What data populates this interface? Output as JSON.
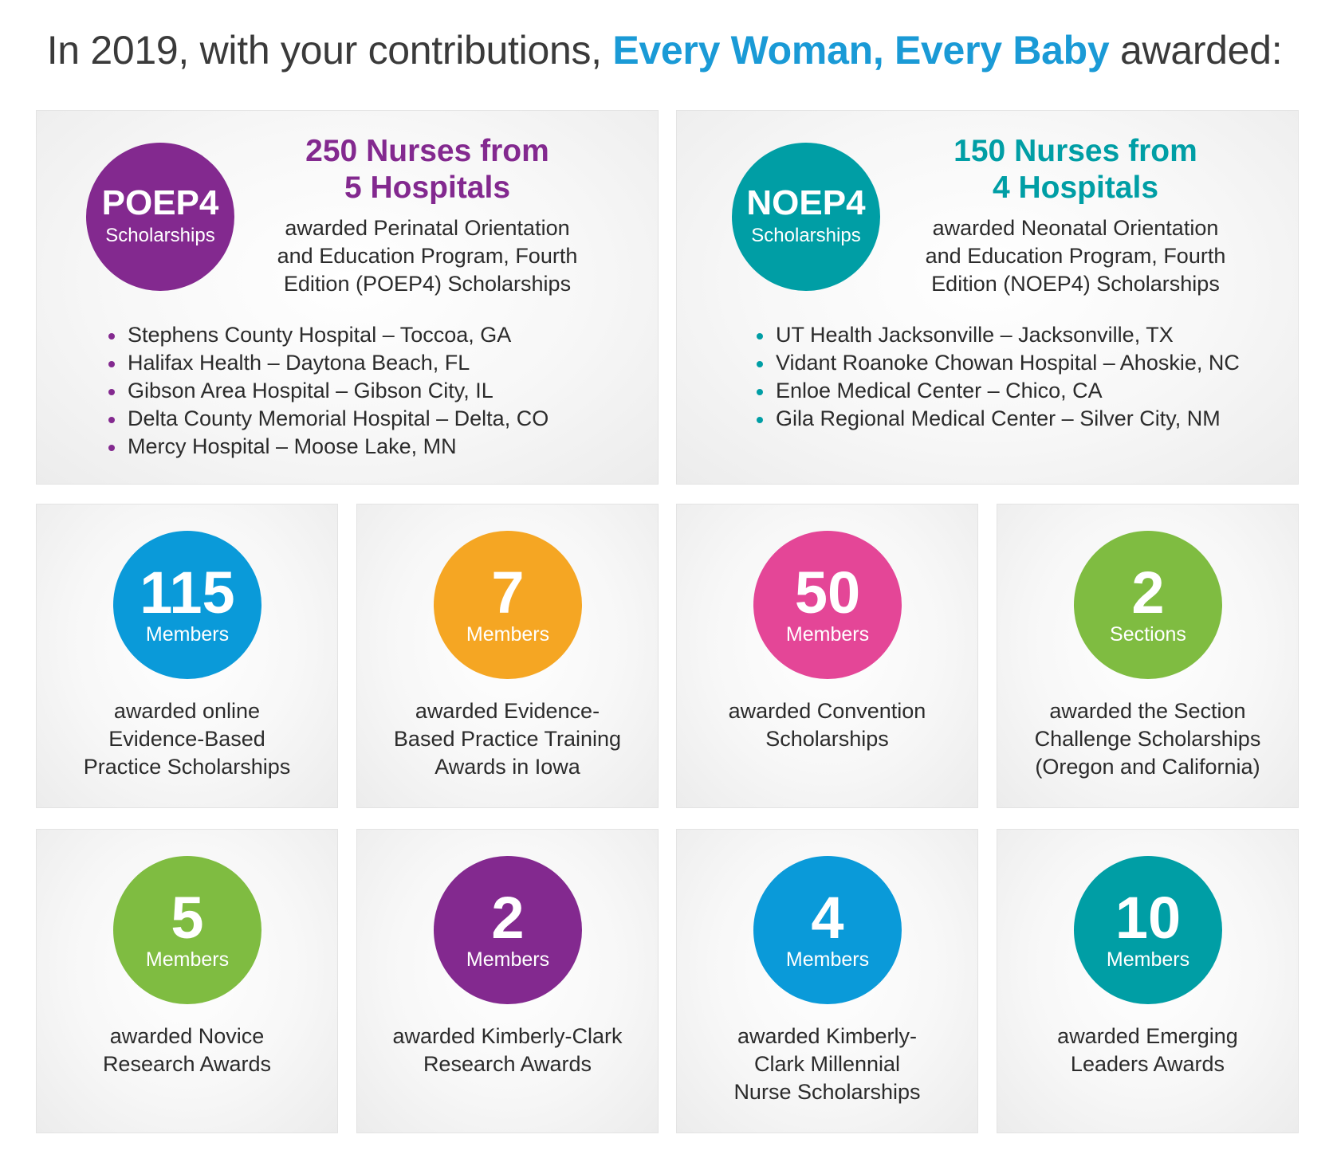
{
  "headline": {
    "prefix": "In 2019, with your contributions, ",
    "highlight": "Every Woman, Every Baby",
    "suffix": " awarded:"
  },
  "colors": {
    "purple": "#83298f",
    "teal": "#009ea5",
    "blue": "#0a9ad9",
    "orange": "#f5a623",
    "pink": "#e44697",
    "green": "#7fbc41"
  },
  "poep": {
    "circle_code": "POEP4",
    "circle_sub": "Scholarships",
    "title_line1": "250 Nurses from",
    "title_line2": "5 Hospitals",
    "desc_lines": [
      "awarded Perinatal Orientation",
      "and Education Program, Fourth",
      "Edition (POEP4) Scholarships"
    ],
    "hospitals": [
      "Stephens County Hospital – Toccoa, GA",
      "Halifax Health – Daytona Beach, FL",
      "Gibson Area Hospital – Gibson City, IL",
      "Delta County Memorial Hospital –  Delta, CO",
      "Mercy Hospital – Moose Lake, MN"
    ]
  },
  "noep": {
    "circle_code": "NOEP4",
    "circle_sub": "Scholarships",
    "title_line1": "150 Nurses from",
    "title_line2": "4 Hospitals",
    "desc_lines": [
      "awarded Neonatal Orientation",
      "and Education Program, Fourth",
      "Edition (NOEP4) Scholarships"
    ],
    "hospitals": [
      "UT Health Jacksonville – Jacksonville, TX",
      "Vidant Roanoke Chowan Hospital – Ahoskie, NC",
      "Enloe Medical Center – Chico, CA",
      "Gila Regional Medical Center – Silver City, NM"
    ]
  },
  "awards": [
    {
      "number": "115",
      "unit": "Members",
      "color": "#0a9ad9",
      "desc_lines": [
        "awarded online",
        "Evidence-Based",
        "Practice Scholarships"
      ]
    },
    {
      "number": "7",
      "unit": "Members",
      "color": "#f5a623",
      "desc_lines": [
        "awarded Evidence-",
        "Based Practice Training",
        "Awards in Iowa"
      ]
    },
    {
      "number": "50",
      "unit": "Members",
      "color": "#e44697",
      "desc_lines": [
        "awarded Convention",
        "Scholarships"
      ]
    },
    {
      "number": "2",
      "unit": "Sections",
      "color": "#7fbc41",
      "desc_lines": [
        "awarded the Section",
        "Challenge Scholarships",
        "(Oregon and California)"
      ]
    },
    {
      "number": "5",
      "unit": "Members",
      "color": "#7fbc41",
      "desc_lines": [
        "awarded Novice",
        "Research Awards"
      ]
    },
    {
      "number": "2",
      "unit": "Members",
      "color": "#83298f",
      "desc_lines": [
        "awarded Kimberly-Clark",
        "Research Awards"
      ]
    },
    {
      "number": "4",
      "unit": "Members",
      "color": "#0a9ad9",
      "desc_lines": [
        "awarded Kimberly-",
        "Clark Millennial",
        "Nurse Scholarships"
      ]
    },
    {
      "number": "10",
      "unit": "Members",
      "color": "#009ea5",
      "desc_lines": [
        "awarded Emerging",
        "Leaders Awards"
      ]
    }
  ]
}
